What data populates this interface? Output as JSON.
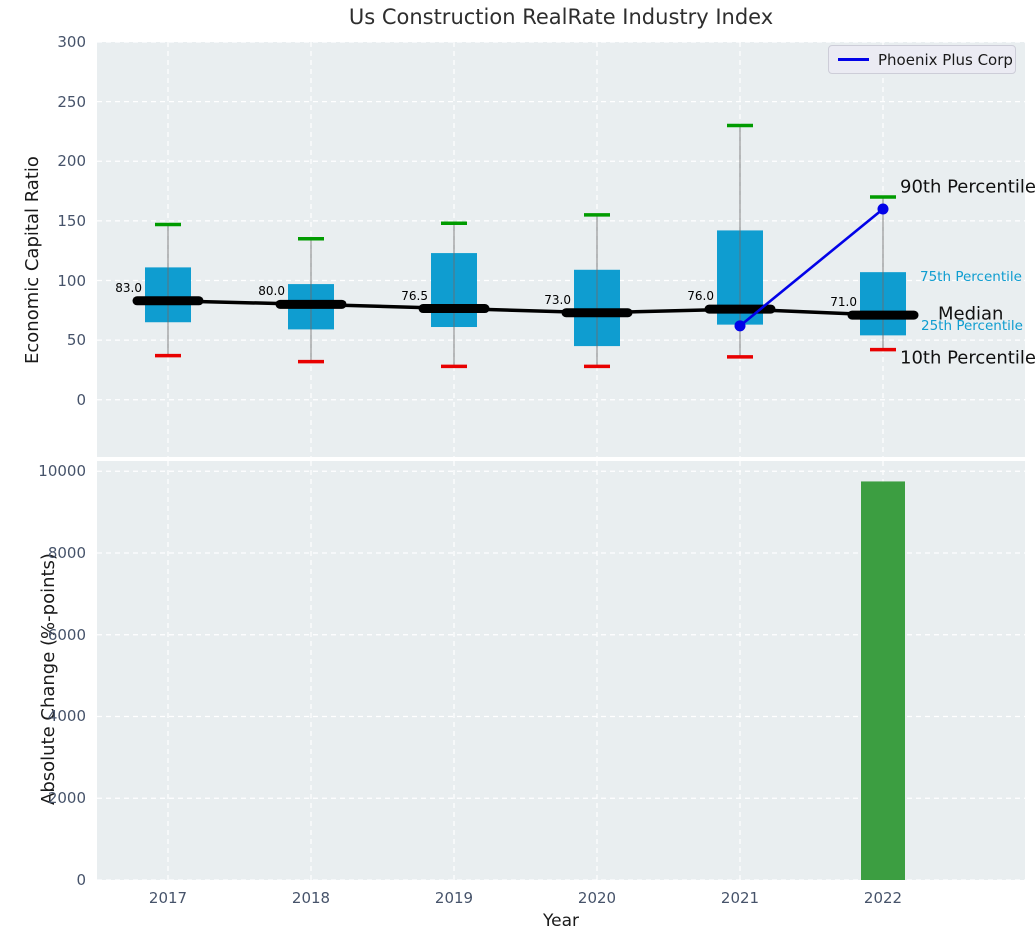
{
  "title": "Us Construction RealRate Industry Index",
  "legend": {
    "label": "Phoenix Plus Corp"
  },
  "annotations": {
    "p90": "90th Percentile",
    "p75": "75th Percentile",
    "median": "Median",
    "p25": "25th Percentile",
    "p10": "10th Percentile"
  },
  "colors": {
    "box": "#0f9dd0",
    "bar": "#3c9e41",
    "cap_high": "#009b00",
    "cap_low": "#e80000",
    "whisker": "#6b6b6b",
    "trend": "#000000",
    "company_line": "#0202e8",
    "plot_bg": "#e9eef0",
    "grid": "#ffffff",
    "tick_text": "#46536a",
    "percentile_text": "#0f9dd0"
  },
  "chart_data": [
    {
      "type": "box",
      "title": "Us Construction RealRate Industry Index",
      "ylabel": "Economic Capital Ratio",
      "ylim": [
        -48,
        300
      ],
      "yticks": [
        0,
        50,
        100,
        150,
        200,
        250,
        300
      ],
      "grid": true,
      "categories": [
        "2017",
        "2018",
        "2019",
        "2020",
        "2021",
        "2022"
      ],
      "series": [
        {
          "name": "10th Percentile",
          "values": [
            37,
            32,
            28,
            28,
            36,
            42
          ]
        },
        {
          "name": "25th Percentile",
          "values": [
            65,
            59,
            61,
            45,
            63,
            54
          ]
        },
        {
          "name": "Median",
          "values": [
            83,
            80,
            76.5,
            73,
            76,
            71
          ]
        },
        {
          "name": "75th Percentile",
          "values": [
            111,
            97,
            123,
            109,
            142,
            107
          ]
        },
        {
          "name": "90th Percentile",
          "values": [
            147,
            135,
            148,
            155,
            230,
            170
          ]
        }
      ],
      "median_labels": [
        "83.0",
        "80.0",
        "76.5",
        "73.0",
        "76.0",
        "71.0"
      ],
      "company": {
        "name": "Phoenix Plus Corp",
        "categories": [
          "2021",
          "2022"
        ],
        "values": [
          62,
          160
        ]
      },
      "legend_position": "upper right"
    },
    {
      "type": "bar",
      "ylabel": "Absolute Change (%-points)",
      "xlabel": "Year",
      "ylim": [
        0,
        10250
      ],
      "yticks": [
        0,
        2000,
        4000,
        6000,
        8000,
        10000
      ],
      "grid": true,
      "categories": [
        "2017",
        "2018",
        "2019",
        "2020",
        "2021",
        "2022"
      ],
      "values": [
        null,
        null,
        null,
        null,
        null,
        9750
      ]
    }
  ]
}
